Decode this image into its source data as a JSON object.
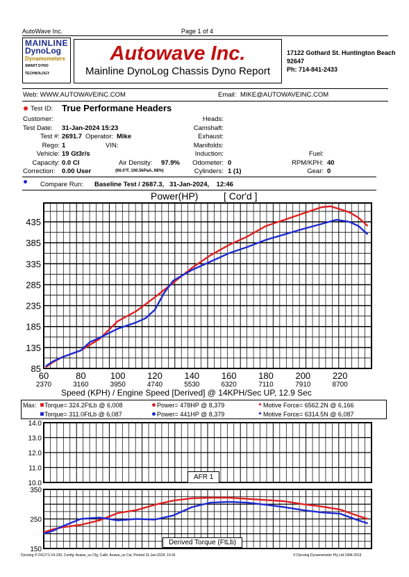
{
  "header": {
    "company_short": "AutoWave Inc.",
    "page": "Page 1 of 4"
  },
  "logo": {
    "line1": "MAINLINE",
    "line2": "DynoLog",
    "line3": "Dynamometers",
    "line4": "SMART DYNO TECHNOLOGY"
  },
  "title": {
    "main": "Autowave Inc.",
    "sub": "Mainline DynoLog Chassis Dyno Report"
  },
  "address": {
    "street": "17122 Gothard St. Huntington Beach",
    "zip": "92647",
    "phone": "Ph: 714-841-2433"
  },
  "contact": {
    "web": "Web: WWW.AUTOWAVEINC.COM",
    "email_label": "Email:",
    "email": "MIKE@AUTOWAVEINC.COM"
  },
  "test": {
    "id_label": "Test ID:",
    "id": "True Performane Headers",
    "customer_label": "Customer:",
    "date_label": "Test Date:",
    "date": "31-Jan-2024 15:23",
    "num_label": "Test #:",
    "num": "2691.7",
    "operator_label": "Operator:",
    "operator": "Mike",
    "rego_label": "Rego:",
    "rego": "1",
    "vin_label": "VIN:",
    "vehicle_label": "Vehicle:",
    "vehicle": "19 Gt3r/s",
    "capacity_label": "Capacity:",
    "capacity": "0.0 CI",
    "air_label": "Air Density:",
    "air": "97.9%",
    "correction_label": "Correction:",
    "correction": "0.00 User",
    "conditions": "(66.0°F, 100.5kPaA, 68%)",
    "heads_label": "Heads:",
    "camshaft_label": "Camshaft:",
    "exhaust_label": "Exhaust:",
    "manifolds_label": "Manifolds:",
    "induction_label": "Induction:",
    "odometer_label": "Odometer:",
    "odometer": "0",
    "cylinders_label": "Cylinders:",
    "cylinders": "1 (1)",
    "fuel_label": "Fuel:",
    "rpm_label": "RPM/KPH:",
    "rpm": "40",
    "gear_label": "Gear:",
    "gear": "0",
    "compare_label": "Compare Run:",
    "compare": "Baseline Test / 2687.3,   31-Jan-2024,    12:46"
  },
  "colors": {
    "run": "#e02020",
    "compare": "#1e2ad0"
  },
  "chart_power": {
    "title": "Power(HP)",
    "corr": "[ Cor'd ]",
    "xlabel": "Speed (KPH) / Engine Speed [Derived] @ 14KPH/Sec UP, 12.9 Sec",
    "rpm_ticks": [
      "2370",
      "3160",
      "3950",
      "4740",
      "5530",
      "6320",
      "7110",
      "7910",
      "8700"
    ]
  },
  "max": {
    "label": "Max:",
    "run_torque": "Torque= 324.2FtLb @ 6,008",
    "run_power": "Power= 478HP @ 8,379",
    "run_force": "Motive Force= 6562.2N @ 6,166",
    "cmp_torque": "Torque= 311.0FtLb @ 6,087",
    "cmp_power": "Power= 441HP @ 8,379",
    "cmp_force": "Motive Force= 6314.5N @ 6,087"
  },
  "chart_afr": {
    "label": "AFR 1"
  },
  "chart_torque": {
    "label": "Derived Torque (FtLb)"
  },
  "footer": {
    "left": "Dynolog ® 241271-V4.109, Config: Avawe_us Cfg, Calib: Avawe_us Cal, Printed 31-Jan-2024, 15:41",
    "right": "© Dynolog Dynamometer Pty Ltd 1994-2019"
  },
  "chart_data": [
    {
      "type": "line",
      "title": "Power(HP)",
      "xlabel": "Speed (KPH) / Engine Speed [Derived] @ 14KPH/Sec UP, 12.9 Sec",
      "xlim": [
        60,
        237
      ],
      "ylim": [
        85,
        480
      ],
      "xticks": [
        60,
        80,
        100,
        120,
        140,
        160,
        180,
        200,
        220
      ],
      "yticks": [
        85,
        135,
        185,
        235,
        285,
        335,
        385,
        435
      ],
      "grid": true,
      "series": [
        {
          "color": "run",
          "x": [
            61,
            65,
            70,
            80,
            90,
            100,
            110,
            120,
            130,
            140,
            150,
            160,
            170,
            180,
            190,
            200,
            210,
            215,
            220,
            225,
            230,
            235
          ],
          "y": [
            88,
            100,
            112,
            128,
            155,
            198,
            222,
            255,
            290,
            325,
            355,
            380,
            400,
            425,
            440,
            455,
            470,
            472,
            465,
            458,
            445,
            425
          ]
        },
        {
          "color": "compare",
          "x": [
            61,
            65,
            70,
            80,
            85,
            90,
            100,
            110,
            115,
            120,
            125,
            130,
            140,
            150,
            160,
            170,
            180,
            190,
            200,
            210,
            218,
            225,
            230,
            235
          ],
          "y": [
            90,
            102,
            112,
            128,
            148,
            158,
            180,
            195,
            205,
            225,
            265,
            295,
            320,
            340,
            360,
            375,
            392,
            405,
            418,
            430,
            440,
            435,
            425,
            405
          ]
        }
      ]
    },
    {
      "type": "line",
      "title": "AFR 1",
      "ylim": [
        10.0,
        14.0
      ],
      "yticks": [
        10.0,
        11.0,
        12.0,
        13.0,
        14.0
      ],
      "grid": true,
      "series": []
    },
    {
      "type": "line",
      "title": "Derived Torque (FtLb)",
      "xlim": [
        60,
        237
      ],
      "ylim": [
        150,
        350
      ],
      "yticks": [
        150,
        250,
        350
      ],
      "grid": true,
      "series": [
        {
          "color": "run",
          "x": [
            60,
            65,
            70,
            80,
            90,
            100,
            110,
            120,
            130,
            140,
            150,
            160,
            170,
            180,
            190,
            200,
            210,
            220,
            230,
            235
          ],
          "y": [
            205,
            215,
            222,
            230,
            245,
            270,
            280,
            298,
            312,
            320,
            322,
            322,
            318,
            314,
            310,
            300,
            292,
            282,
            260,
            250
          ]
        },
        {
          "color": "compare",
          "x": [
            60,
            65,
            70,
            80,
            90,
            100,
            110,
            120,
            130,
            140,
            150,
            160,
            170,
            180,
            190,
            200,
            210,
            220,
            230,
            235
          ],
          "y": [
            200,
            210,
            225,
            250,
            255,
            245,
            250,
            248,
            262,
            290,
            305,
            308,
            305,
            298,
            290,
            280,
            272,
            268,
            245,
            235
          ]
        }
      ]
    }
  ]
}
